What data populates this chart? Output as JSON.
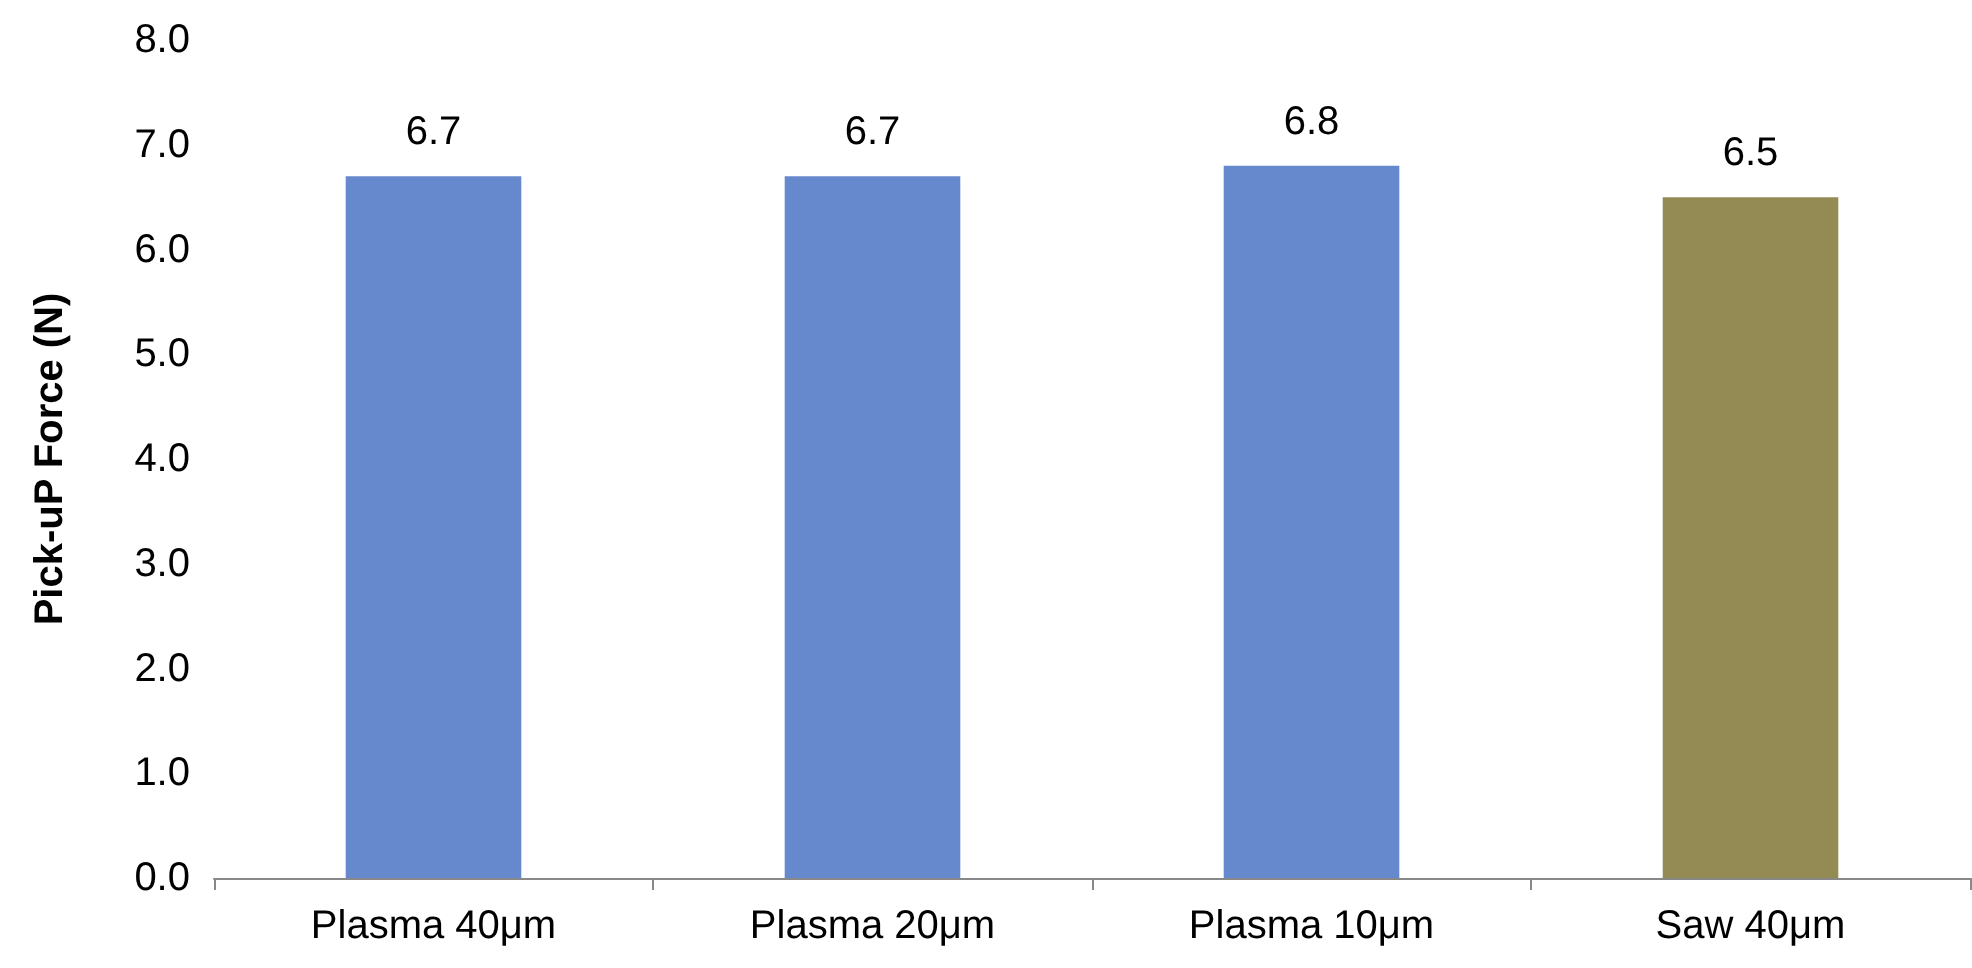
{
  "chart_data": {
    "type": "bar",
    "ylabel": "Pick-uP Force (N)",
    "categories": [
      "Plasma 40μm",
      "Plasma 20μm",
      "Plasma 10μm",
      "Saw 40μm"
    ],
    "values": [
      6.7,
      6.7,
      6.8,
      6.5
    ],
    "colors": [
      "#6688cc",
      "#6688cc",
      "#6688cc",
      "#948a54"
    ],
    "ylim": [
      0,
      8
    ],
    "yticks": [
      {
        "value": 0,
        "label": "0.0"
      },
      {
        "value": 1,
        "label": "1.0"
      },
      {
        "value": 2,
        "label": "2.0"
      },
      {
        "value": 3,
        "label": "3.0"
      },
      {
        "value": 4,
        "label": "4.0"
      },
      {
        "value": 5,
        "label": "5.0"
      },
      {
        "value": 6,
        "label": "6.0"
      },
      {
        "value": 7,
        "label": "7.0"
      },
      {
        "value": 8,
        "label": "8.0"
      }
    ],
    "grid": false,
    "data_labels": true
  }
}
